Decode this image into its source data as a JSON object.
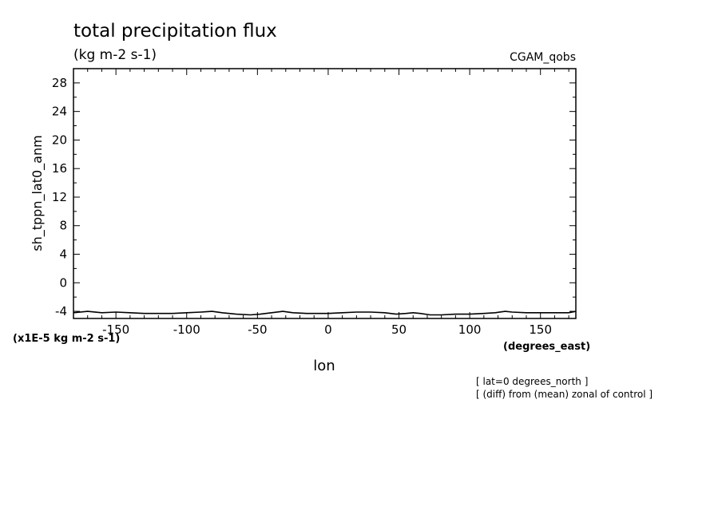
{
  "chart_data": {
    "type": "line",
    "title": "total precipitation flux",
    "units": "(kg m-2 s-1)",
    "dataset": "CGAM_qobs",
    "ylabel": "sh_tppn_lat0_anm",
    "xlabel": "lon",
    "xunits": "(degrees_east)",
    "yscale_note": "(x1E-5 kg m-2 s-1)",
    "notes": [
      "[ lat=0 degrees_north ]",
      "[ (diff) from (mean) zonal of control ]"
    ],
    "xlim": [
      -180,
      175
    ],
    "ylim": [
      -5,
      30
    ],
    "xticks": [
      -150,
      -100,
      -50,
      0,
      50,
      100,
      150
    ],
    "xtick_labels": [
      "-150",
      "-100",
      "-50",
      "0",
      "50",
      "100",
      "150"
    ],
    "yticks": [
      -4,
      0,
      4,
      8,
      12,
      16,
      20,
      24,
      28
    ],
    "ytick_labels": [
      "-4",
      "0",
      "4",
      "8",
      "12",
      "16",
      "20",
      "24",
      "28"
    ],
    "series": [
      {
        "x": [
          -180,
          -170,
          -160,
          -150,
          -140,
          -130,
          -120,
          -110,
          -100,
          -90,
          -82,
          -75,
          -65,
          -55,
          -48,
          -40,
          -32,
          -25,
          -15,
          -5,
          0,
          10,
          20,
          30,
          40,
          48,
          55,
          60,
          65,
          72,
          80,
          90,
          100,
          110,
          118,
          125,
          130,
          140,
          150,
          160,
          170,
          175
        ],
        "y": [
          -4.2,
          -4.0,
          -4.2,
          -4.1,
          -4.2,
          -4.3,
          -4.3,
          -4.3,
          -4.2,
          -4.1,
          -4.0,
          -4.2,
          -4.4,
          -4.5,
          -4.4,
          -4.2,
          -4.0,
          -4.2,
          -4.3,
          -4.3,
          -4.3,
          -4.2,
          -4.1,
          -4.1,
          -4.2,
          -4.4,
          -4.3,
          -4.2,
          -4.3,
          -4.5,
          -4.5,
          -4.4,
          -4.4,
          -4.3,
          -4.2,
          -4.0,
          -4.1,
          -4.2,
          -4.2,
          -4.2,
          -4.2,
          -4.0
        ]
      }
    ]
  }
}
